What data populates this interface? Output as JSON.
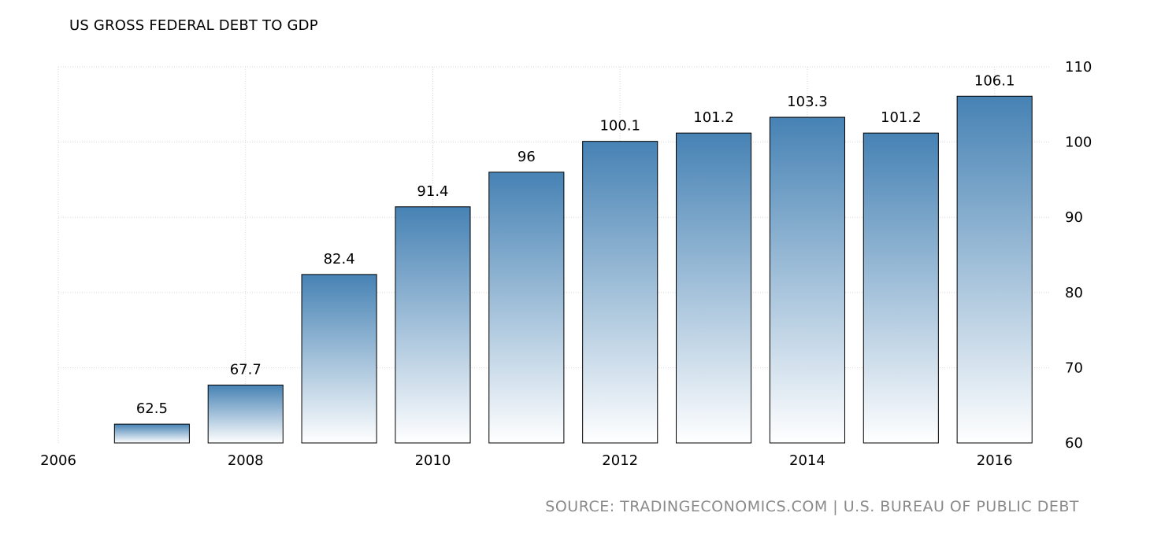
{
  "chart_data": {
    "type": "bar",
    "title": "US GROSS FEDERAL DEBT TO GDP",
    "xlabel": "",
    "ylabel": "",
    "categories": [
      "2007",
      "2008",
      "2009",
      "2010",
      "2011",
      "2012",
      "2013",
      "2014",
      "2015",
      "2016"
    ],
    "values": [
      62.5,
      67.7,
      82.4,
      91.4,
      96,
      100.1,
      101.2,
      103.3,
      101.2,
      106.1
    ],
    "data_labels": [
      "62.5",
      "67.7",
      "82.4",
      "91.4",
      "96",
      "100.1",
      "101.2",
      "103.3",
      "101.2",
      "106.1"
    ],
    "ylim": [
      60,
      110
    ],
    "y_ticks": [
      60,
      70,
      80,
      90,
      100,
      110
    ],
    "xlim": [
      2006,
      2016.6
    ],
    "x_ticks": [
      "2006",
      "2008",
      "2010",
      "2012",
      "2014",
      "2016"
    ],
    "y_axis_side": "right",
    "grid": true,
    "legend": "none",
    "colors": {
      "bar_top": "#4682b4",
      "bar_bottom": "#ffffff",
      "bar_stroke": "#000000",
      "grid": "#d8d8d8"
    }
  },
  "source": "SOURCE: TRADINGECONOMICS.COM | U.S. BUREAU OF PUBLIC DEBT"
}
